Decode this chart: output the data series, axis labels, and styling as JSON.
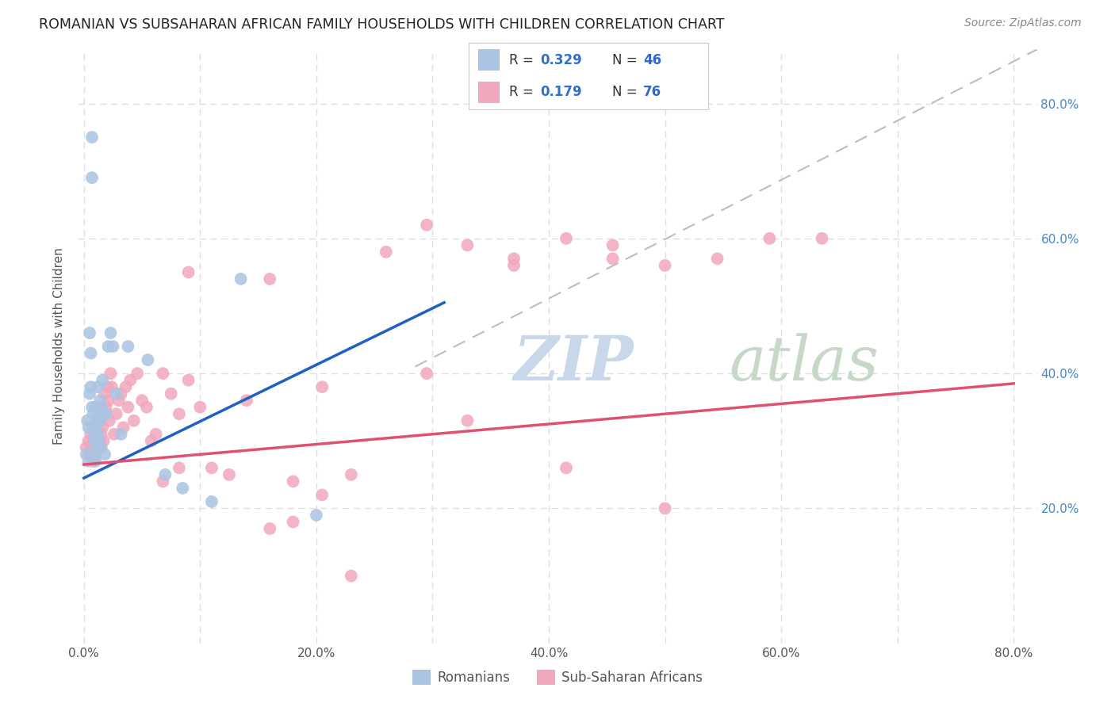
{
  "title": "ROMANIAN VS SUBSAHARAN AFRICAN FAMILY HOUSEHOLDS WITH CHILDREN CORRELATION CHART",
  "source": "Source: ZipAtlas.com",
  "ylabel": "Family Households with Children",
  "xlim": [
    -0.005,
    0.82
  ],
  "ylim": [
    0.0,
    0.88
  ],
  "xticks": [
    0.0,
    0.1,
    0.2,
    0.3,
    0.4,
    0.5,
    0.6,
    0.7,
    0.8
  ],
  "xtick_labels_show": [
    true,
    false,
    true,
    false,
    true,
    false,
    true,
    false,
    true
  ],
  "xtick_labels": [
    "0.0%",
    "",
    "20.0%",
    "",
    "40.0%",
    "",
    "60.0%",
    "",
    "80.0%"
  ],
  "yticks": [
    0.2,
    0.4,
    0.6,
    0.8
  ],
  "ytick_labels": [
    "20.0%",
    "40.0%",
    "60.0%",
    "80.0%"
  ],
  "romanian_color": "#aac4e2",
  "subsaharan_color": "#f2a8bc",
  "line_romanian_color": "#2060c0",
  "line_subsaharan_color": "#e05070",
  "dashed_line_color": "#b8bec8",
  "watermark_zip_color": "#c8d8ea",
  "watermark_atlas_color": "#c8d8c8",
  "background_color": "#ffffff",
  "grid_color": "#dce0e6",
  "title_color": "#222222",
  "source_color": "#888888",
  "ylabel_color": "#555555",
  "tick_color": "#555555",
  "right_tick_color": "#4488cc",
  "legend_border_color": "#cccccc",
  "legend_r_color": "#3070cc",
  "legend_n_color": "#3366cc",
  "rom_line_x0": 0.0,
  "rom_line_y0": 0.245,
  "rom_line_x1": 0.31,
  "rom_line_y1": 0.505,
  "sub_line_x0": 0.0,
  "sub_line_y0": 0.265,
  "sub_line_x1": 0.8,
  "sub_line_y1": 0.385,
  "dash_line_x0": 0.285,
  "dash_line_y0": 0.41,
  "dash_line_x1": 0.82,
  "dash_line_y1": 0.88,
  "romanians_x": [
    0.002,
    0.003,
    0.004,
    0.004,
    0.005,
    0.005,
    0.006,
    0.006,
    0.007,
    0.007,
    0.007,
    0.008,
    0.008,
    0.009,
    0.009,
    0.01,
    0.01,
    0.01,
    0.011,
    0.011,
    0.011,
    0.012,
    0.012,
    0.012,
    0.013,
    0.013,
    0.014,
    0.014,
    0.015,
    0.015,
    0.016,
    0.017,
    0.018,
    0.019,
    0.021,
    0.023,
    0.025,
    0.028,
    0.032,
    0.038,
    0.055,
    0.07,
    0.085,
    0.11,
    0.135,
    0.2
  ],
  "romanians_y": [
    0.28,
    0.33,
    0.32,
    0.27,
    0.46,
    0.37,
    0.43,
    0.38,
    0.75,
    0.69,
    0.35,
    0.34,
    0.28,
    0.31,
    0.3,
    0.35,
    0.32,
    0.27,
    0.33,
    0.35,
    0.29,
    0.34,
    0.31,
    0.38,
    0.33,
    0.3,
    0.36,
    0.33,
    0.35,
    0.29,
    0.39,
    0.34,
    0.28,
    0.34,
    0.44,
    0.46,
    0.44,
    0.37,
    0.31,
    0.44,
    0.42,
    0.25,
    0.23,
    0.21,
    0.54,
    0.19
  ],
  "subsaharan_x": [
    0.002,
    0.004,
    0.005,
    0.006,
    0.007,
    0.008,
    0.008,
    0.009,
    0.01,
    0.01,
    0.011,
    0.011,
    0.012,
    0.013,
    0.013,
    0.014,
    0.015,
    0.015,
    0.016,
    0.017,
    0.018,
    0.019,
    0.02,
    0.021,
    0.022,
    0.023,
    0.024,
    0.026,
    0.028,
    0.03,
    0.032,
    0.034,
    0.036,
    0.038,
    0.04,
    0.043,
    0.046,
    0.05,
    0.054,
    0.058,
    0.062,
    0.068,
    0.075,
    0.082,
    0.09,
    0.1,
    0.11,
    0.125,
    0.14,
    0.16,
    0.18,
    0.205,
    0.23,
    0.26,
    0.295,
    0.33,
    0.37,
    0.415,
    0.455,
    0.5,
    0.545,
    0.59,
    0.635,
    0.415,
    0.455,
    0.5,
    0.295,
    0.33,
    0.37,
    0.18,
    0.205,
    0.23,
    0.068,
    0.082,
    0.09,
    0.16
  ],
  "subsaharan_y": [
    0.29,
    0.3,
    0.28,
    0.31,
    0.29,
    0.3,
    0.27,
    0.32,
    0.28,
    0.31,
    0.3,
    0.29,
    0.31,
    0.29,
    0.33,
    0.3,
    0.31,
    0.34,
    0.32,
    0.3,
    0.37,
    0.35,
    0.38,
    0.36,
    0.33,
    0.4,
    0.38,
    0.31,
    0.34,
    0.36,
    0.37,
    0.32,
    0.38,
    0.35,
    0.39,
    0.33,
    0.4,
    0.36,
    0.35,
    0.3,
    0.31,
    0.4,
    0.37,
    0.34,
    0.39,
    0.35,
    0.26,
    0.25,
    0.36,
    0.17,
    0.18,
    0.38,
    0.25,
    0.58,
    0.4,
    0.33,
    0.57,
    0.26,
    0.59,
    0.2,
    0.57,
    0.6,
    0.6,
    0.6,
    0.57,
    0.56,
    0.62,
    0.59,
    0.56,
    0.24,
    0.22,
    0.1,
    0.24,
    0.26,
    0.55,
    0.54
  ]
}
